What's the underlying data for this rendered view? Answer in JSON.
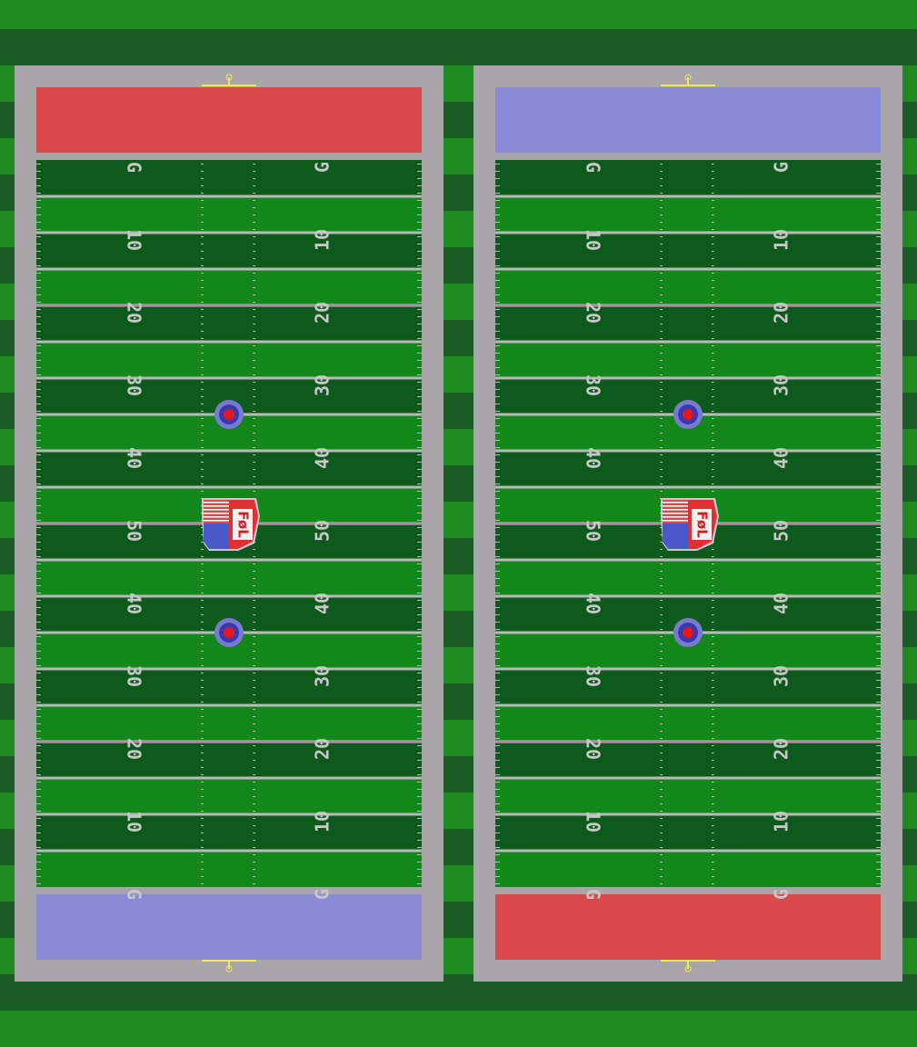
{
  "colors": {
    "grass_light": "#1f8a1f",
    "grass_dark": "#1a5c23",
    "field_light": "#12871a",
    "field_dark": "#0e5a1c",
    "border": "#a8a6a9",
    "line": "#b9b9b9",
    "number": "#c7c7c7",
    "red_endzone": "#d9484b",
    "blue_endzone": "#8a8ad6",
    "goalpost": "#f0e85a",
    "magenta_line": "#d04aa0"
  },
  "yard_labels": [
    "G",
    "10",
    "20",
    "30",
    "40",
    "50",
    "40",
    "30",
    "20",
    "10",
    "G"
  ],
  "fields": [
    {
      "id": "left",
      "top_endzone": "red",
      "bottom_endzone": "blue"
    },
    {
      "id": "right",
      "top_endzone": "blue",
      "bottom_endzone": "red"
    }
  ],
  "logo": {
    "text": "FøL"
  }
}
